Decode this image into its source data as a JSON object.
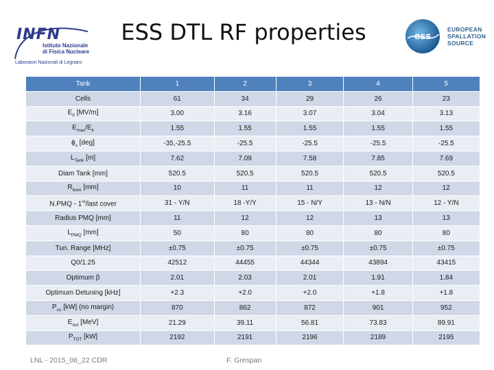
{
  "slide": {
    "title": "ESS DTL RF properties"
  },
  "logos": {
    "infn": {
      "word": "INFN",
      "sub_line1": "Istituto Nazionale",
      "sub_line2": "di Fisica Nucleare",
      "lab": "Laboratori Nazionali di Legnaro",
      "color": "#2d3a8c"
    },
    "ess": {
      "mark": "ess",
      "line1": "EUROPEAN",
      "line2": "SPALLATION",
      "line3": "SOURCE",
      "color": "#2f5f8e"
    }
  },
  "table": {
    "header": [
      "Tank",
      "1",
      "2",
      "3",
      "4",
      "5"
    ],
    "rows": [
      [
        "Cells",
        "61",
        "34",
        "29",
        "26",
        "23"
      ],
      [
        "E0 [MV/m]",
        "3.00",
        "3.16",
        "3.07",
        "3.04",
        "3.13"
      ],
      [
        "Emax/Ek",
        "1.55",
        "1.55",
        "1.55",
        "1.55",
        "1.55"
      ],
      [
        "φs [deg]",
        "-35,-25.5",
        "-25.5",
        "-25.5",
        "-25.5",
        "-25.5"
      ],
      [
        "Ltank [m]",
        "7.62",
        "7.09",
        "7.58",
        "7.85",
        "7.69"
      ],
      [
        "Diam Tank [mm]",
        "520.5",
        "520.5",
        "520.5",
        "520.5",
        "520.5"
      ],
      [
        "Rbore [mm]",
        "10",
        "11",
        "11",
        "12",
        "12"
      ],
      [
        "N.PMQ - 1st/last cover",
        "31 - Y/N",
        "18 -Y/Y",
        "15 - N/Y",
        "13 - N/N",
        "12 - Y/N"
      ],
      [
        "Radius PMQ [mm]",
        "11",
        "12",
        "12",
        "13",
        "13"
      ],
      [
        "LPMQ [mm]",
        "50",
        "80",
        "80",
        "80",
        "80"
      ],
      [
        "Tun. Range [MHz]",
        "±0.75",
        "±0.75",
        "±0.75",
        "±0.75",
        "±0.75"
      ],
      [
        "Q0/1.25",
        "42512",
        "44455",
        "44344",
        "43894",
        "43415"
      ],
      [
        "Optimum β",
        "2.01",
        "2.03",
        "2.01",
        "1.91",
        "1.84"
      ],
      [
        "Optimum Detuning [kHz]",
        "+2.3",
        "+2.0",
        "+2.0",
        "+1.8",
        "+1.8"
      ],
      [
        "Pcu [kW] (no margin)",
        "870",
        "862",
        "872",
        "901",
        "952"
      ],
      [
        "Eout [MeV]",
        "21.29",
        "39.11",
        "56.81",
        "73.83",
        "89.91"
      ],
      [
        "PTOT [kW]",
        "2192",
        "2191",
        "2196",
        "2189",
        "2195"
      ]
    ],
    "label_parts": {
      "e0": {
        "base": "E",
        "sub": "0",
        "rest": " [MV/m]"
      },
      "emax": {
        "base": "E",
        "sub": "max",
        "mid": "/E",
        "sub2": "k"
      },
      "phis": {
        "base": "ϕ",
        "sub": "s",
        "rest": " [deg]"
      },
      "ltank": {
        "base": "L",
        "sub": "Tank",
        "rest": " [m]"
      },
      "rbore": {
        "base": "R",
        "sub": "bore",
        "rest": " [mm]"
      },
      "npmq": {
        "base": "N.PMQ - 1",
        "sup": "st",
        "rest": "/last cover"
      },
      "lpmq": {
        "base": "L",
        "sub": "PMQ",
        "rest": " [mm]"
      },
      "pcu": {
        "base": "P",
        "sub": "cu",
        "rest": " [kW] (no margin)"
      },
      "eout": {
        "base": "E",
        "sub": "out",
        "rest": " [MeV]"
      },
      "ptot": {
        "base": "P",
        "sub": "TOT",
        "rest": " [kW]"
      }
    },
    "colors": {
      "header": "#4f81bd",
      "row_odd": "#d0d8e8",
      "row_even": "#e9edf4"
    }
  },
  "footer": {
    "left": "LNL - 2015_06_22 CDR",
    "center": "F. Grespan"
  }
}
